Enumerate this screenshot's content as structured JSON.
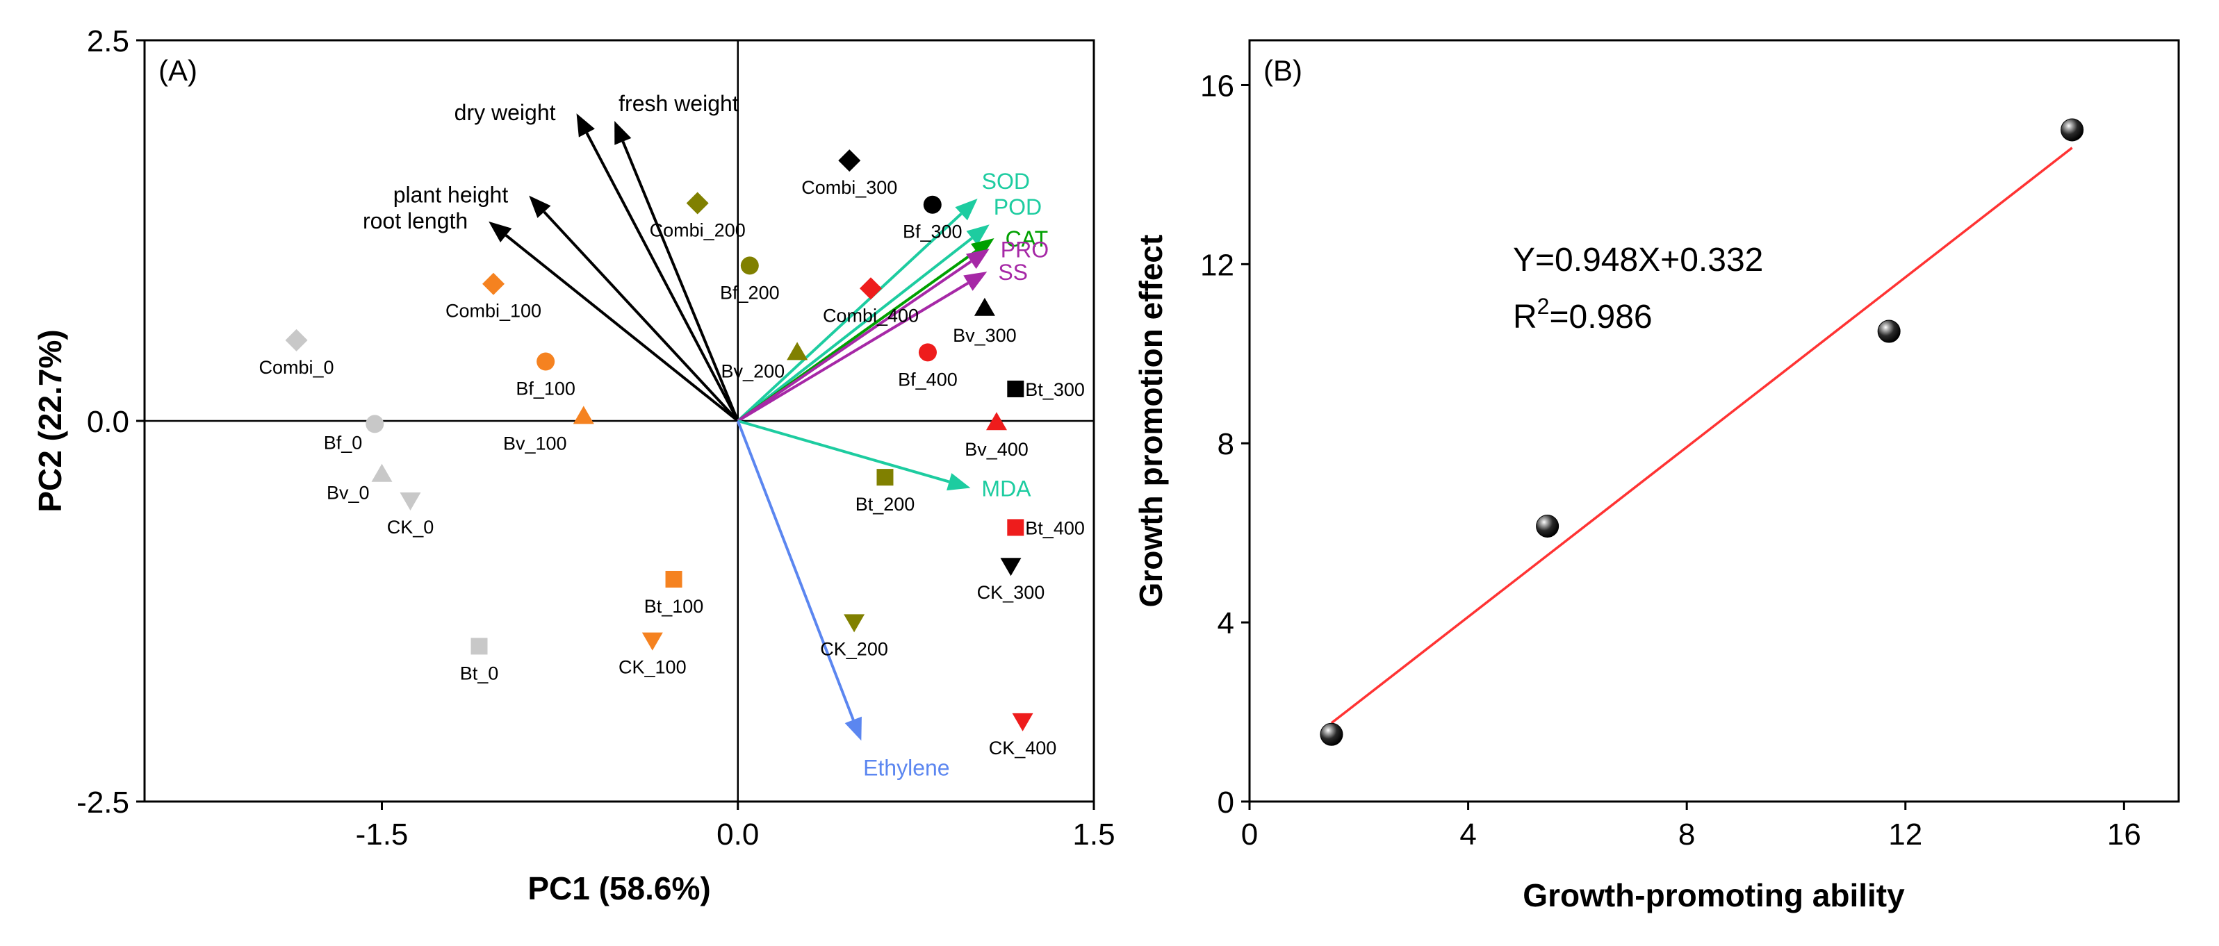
{
  "chart_data": [
    {
      "panel_label": "(A)",
      "type": "scatter",
      "subtype": "pca-biplot",
      "xlabel": "PC1 (58.6%)",
      "ylabel": "PC2 (22.7%)",
      "xlim": [
        -2.5,
        1.5
      ],
      "ylim": [
        -2.5,
        2.5
      ],
      "xticks": [
        -1.5,
        0.0,
        1.5
      ],
      "xtick_labels": [
        "-1.5",
        "0.0",
        "1.5"
      ],
      "yticks": [
        -2.5,
        0.0,
        2.5
      ],
      "ytick_labels": [
        "-2.5",
        "0.0",
        "2.5"
      ],
      "reference_lines": {
        "x": 0.0,
        "y": 0.0
      },
      "points": [
        {
          "label": "Combi_0",
          "x": -1.86,
          "y": 0.53,
          "marker": "diamond",
          "color": "#c8c8c8",
          "label_pos": "below"
        },
        {
          "label": "Bf_0",
          "x": -1.53,
          "y": -0.02,
          "marker": "circle",
          "color": "#c8c8c8",
          "label_pos": "left"
        },
        {
          "label": "Bv_0",
          "x": -1.5,
          "y": -0.35,
          "marker": "triangle",
          "color": "#c8c8c8",
          "label_pos": "left"
        },
        {
          "label": "CK_0",
          "x": -1.38,
          "y": -0.52,
          "marker": "tri-down",
          "color": "#c8c8c8",
          "label_pos": "below"
        },
        {
          "label": "Bt_0",
          "x": -1.09,
          "y": -1.48,
          "marker": "square",
          "color": "#c8c8c8",
          "label_pos": "below"
        },
        {
          "label": "Combi_100",
          "x": -1.03,
          "y": 0.9,
          "marker": "diamond",
          "color": "#f58220",
          "label_pos": "below"
        },
        {
          "label": "Bf_100",
          "x": -0.81,
          "y": 0.39,
          "marker": "circle",
          "color": "#f58220",
          "label_pos": "below"
        },
        {
          "label": "Bv_100",
          "x": -0.65,
          "y": 0.03,
          "marker": "triangle",
          "color": "#f58220",
          "label_pos": "below-left"
        },
        {
          "label": "Bt_100",
          "x": -0.27,
          "y": -1.04,
          "marker": "square",
          "color": "#f58220",
          "label_pos": "below"
        },
        {
          "label": "CK_100",
          "x": -0.36,
          "y": -1.44,
          "marker": "tri-down",
          "color": "#f58220",
          "label_pos": "below"
        },
        {
          "label": "Combi_200",
          "x": -0.17,
          "y": 1.43,
          "marker": "diamond",
          "color": "#808000",
          "label_pos": "below"
        },
        {
          "label": "Bf_200",
          "x": 0.05,
          "y": 1.02,
          "marker": "circle",
          "color": "#808000",
          "label_pos": "below"
        },
        {
          "label": "Bv_200",
          "x": 0.25,
          "y": 0.45,
          "marker": "triangle",
          "color": "#808000",
          "label_pos": "left"
        },
        {
          "label": "Bt_200",
          "x": 0.62,
          "y": -0.37,
          "marker": "square",
          "color": "#808000",
          "label_pos": "below"
        },
        {
          "label": "CK_200",
          "x": 0.49,
          "y": -1.32,
          "marker": "tri-down",
          "color": "#808000",
          "label_pos": "below"
        },
        {
          "label": "Combi_300",
          "x": 0.47,
          "y": 1.71,
          "marker": "diamond",
          "color": "#000000",
          "label_pos": "below"
        },
        {
          "label": "Bf_300",
          "x": 0.82,
          "y": 1.42,
          "marker": "circle",
          "color": "#000000",
          "label_pos": "below"
        },
        {
          "label": "Bv_300",
          "x": 1.04,
          "y": 0.74,
          "marker": "triangle",
          "color": "#000000",
          "label_pos": "below"
        },
        {
          "label": "Bt_300",
          "x": 1.17,
          "y": 0.21,
          "marker": "square",
          "color": "#000000",
          "label_pos": "right"
        },
        {
          "label": "CK_300",
          "x": 1.15,
          "y": -0.95,
          "marker": "tri-down",
          "color": "#000000",
          "label_pos": "below"
        },
        {
          "label": "Combi_400",
          "x": 0.56,
          "y": 0.87,
          "marker": "diamond",
          "color": "#ee1c1c",
          "label_pos": "below"
        },
        {
          "label": "Bf_400",
          "x": 0.8,
          "y": 0.45,
          "marker": "circle",
          "color": "#ee1c1c",
          "label_pos": "below"
        },
        {
          "label": "Bv_400",
          "x": 1.09,
          "y": -0.01,
          "marker": "triangle",
          "color": "#ee1c1c",
          "label_pos": "below"
        },
        {
          "label": "Bt_400",
          "x": 1.17,
          "y": -0.7,
          "marker": "square",
          "color": "#ee1c1c",
          "label_pos": "right"
        },
        {
          "label": "CK_400",
          "x": 1.2,
          "y": -1.97,
          "marker": "tri-down",
          "color": "#ee1c1c",
          "label_pos": "below"
        }
      ],
      "loadings": [
        {
          "label": "dry weight",
          "x": -0.68,
          "y": 2.02,
          "color": "#000000",
          "label_pos": "left"
        },
        {
          "label": "fresh weight",
          "x": -0.52,
          "y": 1.97,
          "color": "#000000",
          "label_pos": "above-right"
        },
        {
          "label": "plant height",
          "x": -0.88,
          "y": 1.48,
          "color": "#000000",
          "label_pos": "left"
        },
        {
          "label": "root length",
          "x": -1.05,
          "y": 1.31,
          "color": "#000000",
          "label_pos": "left"
        },
        {
          "label": "SOD",
          "x": 1.01,
          "y": 1.46,
          "color": "#1dcca0",
          "label_pos": "above-right"
        },
        {
          "label": "POD",
          "x": 1.06,
          "y": 1.29,
          "color": "#1dcca0",
          "label_pos": "above-right"
        },
        {
          "label": "CAT",
          "x": 1.08,
          "y": 1.2,
          "color": "#00a000",
          "label_pos": "right"
        },
        {
          "label": "PRO",
          "x": 1.06,
          "y": 1.13,
          "color": "#a628a6",
          "label_pos": "right"
        },
        {
          "label": "SS",
          "x": 1.05,
          "y": 0.98,
          "color": "#a628a6",
          "label_pos": "right"
        },
        {
          "label": "MDA",
          "x": 0.98,
          "y": -0.44,
          "color": "#1dcca0",
          "label_pos": "right"
        },
        {
          "label": "Ethylene",
          "x": 0.52,
          "y": -2.1,
          "color": "#5b86f0",
          "label_pos": "below"
        }
      ]
    },
    {
      "panel_label": "(B)",
      "type": "scatter",
      "xlabel": "Growth-promoting ability",
      "ylabel": "Growth promotion effect",
      "xlim": [
        0,
        17
      ],
      "ylim": [
        0,
        17
      ],
      "xticks": [
        0,
        4,
        8,
        12,
        16
      ],
      "yticks": [
        0,
        4,
        8,
        12,
        16
      ],
      "points": [
        {
          "x": 1.5,
          "y": 1.5
        },
        {
          "x": 5.45,
          "y": 6.15
        },
        {
          "x": 11.7,
          "y": 10.5
        },
        {
          "x": 15.05,
          "y": 15.0
        }
      ],
      "fit": {
        "slope": 0.948,
        "intercept": 0.332,
        "x_range": [
          1.5,
          15.05
        ],
        "color": "#ff3333"
      },
      "equation": "Y=0.948X+0.332",
      "r2_prefix": "R",
      "r2_exponent": "2",
      "r2_value": "=0.986"
    }
  ]
}
